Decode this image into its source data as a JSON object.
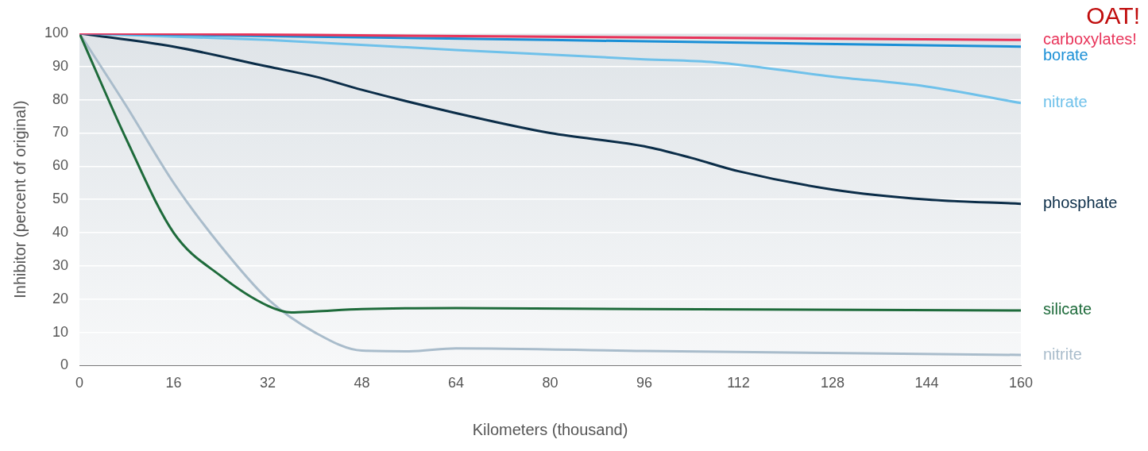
{
  "chart_data": {
    "type": "line",
    "title": "OAT!",
    "xlabel": "Kilometers (thousand)",
    "ylabel": "Inhibitor (percent of original)",
    "xlim": [
      0,
      160
    ],
    "xticks": [
      0,
      16,
      32,
      48,
      64,
      80,
      96,
      112,
      128,
      144,
      160
    ],
    "ylim": [
      0,
      100
    ],
    "yticks": [
      0,
      10,
      20,
      30,
      40,
      50,
      60,
      70,
      80,
      90,
      100
    ],
    "grid": "y",
    "legend": false,
    "marker": "none",
    "line_style": "solid",
    "series": [
      {
        "name": "carboxylates!",
        "color": "#e8345a",
        "x": [
          0,
          80,
          160
        ],
        "values": [
          100,
          99,
          98
        ]
      },
      {
        "name": "borate",
        "color": "#1a8fd6",
        "x": [
          0,
          80,
          160
        ],
        "values": [
          100,
          98,
          96
        ]
      },
      {
        "name": "nitrate",
        "color": "#6fc1ea",
        "x": [
          0,
          32,
          64,
          96,
          108,
          128,
          144,
          160
        ],
        "values": [
          100,
          98,
          95,
          92.2,
          91.3,
          87,
          84,
          79
        ]
      },
      {
        "name": "phosphate",
        "color": "#0b2d48",
        "x": [
          0,
          16,
          32,
          40,
          48,
          64,
          80,
          96,
          104,
          112,
          128,
          144,
          160
        ],
        "values": [
          100,
          96,
          90,
          87,
          83,
          76,
          70,
          66,
          62.5,
          58.5,
          53,
          50,
          48.7
        ]
      },
      {
        "name": "silicate",
        "color": "#1e6b3b",
        "x": [
          0,
          8,
          16,
          24,
          32,
          36,
          40,
          48,
          64,
          96,
          160
        ],
        "values": [
          100,
          68,
          40,
          27,
          18,
          16,
          16.3,
          17,
          17.3,
          17,
          16.6
        ]
      },
      {
        "name": "nitrite",
        "color": "#a9bccb",
        "x": [
          0,
          8,
          16,
          24,
          32,
          40,
          48,
          56,
          64,
          96,
          160
        ],
        "values": [
          100,
          78,
          55,
          36,
          20,
          10,
          4.5,
          4.3,
          5.2,
          4.4,
          3.2
        ]
      }
    ]
  }
}
